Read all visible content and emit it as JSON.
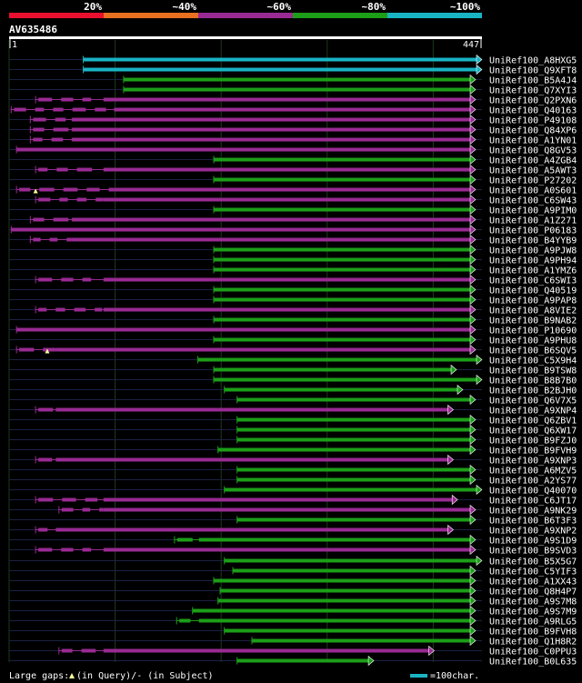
{
  "legend_scale": {
    "segments": [
      {
        "label": "20%",
        "color": "#e8102e"
      },
      {
        "label": "~40%",
        "color": "#e87020"
      },
      {
        "label": "~60%",
        "color": "#992a93"
      },
      {
        "label": "~80%",
        "color": "#1c9e18"
      },
      {
        "label": "~100%",
        "color": "#19b4c4"
      }
    ]
  },
  "query": {
    "name": "AV635486",
    "start": "1",
    "end": "447",
    "length": 447
  },
  "colors": {
    "cyan": "#19b4c4",
    "green": "#1c9e18",
    "magenta": "#992a93",
    "arrow_outline": "#ffffff",
    "gap_marker": "#ffff99"
  },
  "hits": [
    {
      "name": "UniRef100_A8HXG5",
      "color": "cyan",
      "start": 71,
      "end": 447,
      "tip": "arrow"
    },
    {
      "name": "UniRef100_Q9XFT8",
      "color": "cyan",
      "start": 71,
      "end": 447,
      "tip": "arrow"
    },
    {
      "name": "UniRef100_B5A4J4",
      "color": "green",
      "start": 109,
      "end": 441,
      "tip": "arrow"
    },
    {
      "name": "UniRef100_Q7XYI3",
      "color": "green",
      "start": 109,
      "end": 441,
      "tip": "arrow"
    },
    {
      "name": "UniRef100_Q2PXN6",
      "color": "magenta",
      "start": 26,
      "end": 441,
      "tip": "arrow",
      "dense_until": 90
    },
    {
      "name": "UniRef100_Q40163",
      "color": "magenta",
      "start": 3,
      "end": 441,
      "tip": "arrow",
      "dense_until": 100
    },
    {
      "name": "UniRef100_P49108",
      "color": "magenta",
      "start": 21,
      "end": 441,
      "tip": "arrow",
      "dense_until": 60
    },
    {
      "name": "UniRef100_Q84XP6",
      "color": "magenta",
      "start": 21,
      "end": 441,
      "tip": "arrow",
      "dense_until": 60
    },
    {
      "name": "UniRef100_A1YN01",
      "color": "magenta",
      "start": 21,
      "end": 441,
      "tip": "arrow",
      "dense_until": 60
    },
    {
      "name": "UniRef100_Q8GV53",
      "color": "magenta",
      "start": 8,
      "end": 441,
      "tip": "arrow"
    },
    {
      "name": "UniRef100_A4ZGB4",
      "color": "green",
      "start": 194,
      "end": 441,
      "tip": "arrow"
    },
    {
      "name": "UniRef100_A5AWT3",
      "color": "magenta",
      "start": 26,
      "end": 441,
      "tip": "arrow",
      "dense_until": 90
    },
    {
      "name": "UniRef100_P27202",
      "color": "green",
      "start": 194,
      "end": 441,
      "tip": "arrow"
    },
    {
      "name": "UniRef100_A0S601",
      "color": "magenta",
      "start": 8,
      "end": 441,
      "tip": "arrow",
      "dense_until": 100,
      "gap_marker": 26
    },
    {
      "name": "UniRef100_C6SW43",
      "color": "magenta",
      "start": 26,
      "end": 441,
      "tip": "arrow",
      "dense_until": 90
    },
    {
      "name": "UniRef100_A9PIM0",
      "color": "green",
      "start": 194,
      "end": 441,
      "tip": "arrow"
    },
    {
      "name": "UniRef100_A1Z271",
      "color": "magenta",
      "start": 21,
      "end": 441,
      "tip": "arrow",
      "dense_until": 60
    },
    {
      "name": "UniRef100_P06183",
      "color": "magenta",
      "start": 3,
      "end": 441,
      "tip": "arrow"
    },
    {
      "name": "UniRef100_B4YYB9",
      "color": "magenta",
      "start": 21,
      "end": 441,
      "tip": "arrow",
      "dense_until": 60
    },
    {
      "name": "UniRef100_A9PJW8",
      "color": "green",
      "start": 194,
      "end": 441,
      "tip": "arrow"
    },
    {
      "name": "UniRef100_A9PH94",
      "color": "green",
      "start": 194,
      "end": 441,
      "tip": "arrow"
    },
    {
      "name": "UniRef100_A1YMZ6",
      "color": "green",
      "start": 194,
      "end": 441,
      "tip": "arrow"
    },
    {
      "name": "UniRef100_C6SWI3",
      "color": "magenta",
      "start": 26,
      "end": 441,
      "tip": "arrow",
      "dense_until": 90
    },
    {
      "name": "UniRef100_Q40519",
      "color": "green",
      "start": 194,
      "end": 441,
      "tip": "arrow"
    },
    {
      "name": "UniRef100_A9PAP8",
      "color": "green",
      "start": 194,
      "end": 441,
      "tip": "arrow"
    },
    {
      "name": "UniRef100_A8VIE2",
      "color": "magenta",
      "start": 26,
      "end": 441,
      "tip": "arrow",
      "dense_until": 90
    },
    {
      "name": "UniRef100_B9NAB2",
      "color": "green",
      "start": 194,
      "end": 441,
      "tip": "arrow"
    },
    {
      "name": "UniRef100_P10690",
      "color": "magenta",
      "start": 8,
      "end": 441,
      "tip": "arrow"
    },
    {
      "name": "UniRef100_A9PHU8",
      "color": "green",
      "start": 194,
      "end": 441,
      "tip": "arrow"
    },
    {
      "name": "UniRef100_B6SQV5",
      "color": "magenta",
      "start": 8,
      "end": 441,
      "tip": "arrow",
      "dense_until": 45,
      "gap_marker": 37
    },
    {
      "name": "UniRef100_C5X9H4",
      "color": "green",
      "start": 179,
      "end": 447,
      "tip": "arrow"
    },
    {
      "name": "UniRef100_B9TSW8",
      "color": "green",
      "start": 194,
      "end": 423,
      "tip": "arrow"
    },
    {
      "name": "UniRef100_B8B7B0",
      "color": "green",
      "start": 194,
      "end": 447,
      "tip": "arrow"
    },
    {
      "name": "UniRef100_B2BJH0",
      "color": "green",
      "start": 204,
      "end": 429,
      "tip": "arrow"
    },
    {
      "name": "UniRef100_Q6V7X5",
      "color": "green",
      "start": 216,
      "end": 441,
      "tip": "arrow"
    },
    {
      "name": "UniRef100_A9XNP4",
      "color": "magenta",
      "start": 26,
      "end": 420,
      "tip": "arrow",
      "dense_until": 45
    },
    {
      "name": "UniRef100_Q6ZBV1",
      "color": "green",
      "start": 216,
      "end": 441,
      "tip": "arrow"
    },
    {
      "name": "UniRef100_Q6XW17",
      "color": "green",
      "start": 216,
      "end": 441,
      "tip": "arrow"
    },
    {
      "name": "UniRef100_B9FZJ0",
      "color": "green",
      "start": 216,
      "end": 441,
      "tip": "arrow"
    },
    {
      "name": "UniRef100_B9FVH9",
      "color": "green",
      "start": 198,
      "end": 441,
      "tip": "arrow"
    },
    {
      "name": "UniRef100_A9XNP3",
      "color": "magenta",
      "start": 26,
      "end": 420,
      "tip": "arrow",
      "dense_until": 45
    },
    {
      "name": "UniRef100_A6MZV5",
      "color": "green",
      "start": 216,
      "end": 441,
      "tip": "arrow"
    },
    {
      "name": "UniRef100_A2YS77",
      "color": "green",
      "start": 216,
      "end": 441,
      "tip": "arrow"
    },
    {
      "name": "UniRef100_Q40070",
      "color": "green",
      "start": 204,
      "end": 447,
      "tip": "arrow"
    },
    {
      "name": "UniRef100_C6JT17",
      "color": "magenta",
      "start": 26,
      "end": 424,
      "tip": "arrow",
      "dense_until": 90
    },
    {
      "name": "UniRef100_A9NK29",
      "color": "magenta",
      "start": 48,
      "end": 441,
      "tip": "arrow",
      "dense_until": 90
    },
    {
      "name": "UniRef100_B6T3F3",
      "color": "green",
      "start": 216,
      "end": 441,
      "tip": "arrow"
    },
    {
      "name": "UniRef100_A9XNP2",
      "color": "magenta",
      "start": 26,
      "end": 420,
      "tip": "arrow",
      "dense_until": 45
    },
    {
      "name": "UniRef100_A9S1D9",
      "color": "green",
      "start": 157,
      "end": 441,
      "tip": "arrow",
      "dense_until": 180
    },
    {
      "name": "UniRef100_B9SVD3",
      "color": "magenta",
      "start": 26,
      "end": 441,
      "tip": "arrow",
      "dense_until": 90
    },
    {
      "name": "UniRef100_B5X5G7",
      "color": "green",
      "start": 204,
      "end": 447,
      "tip": "arrow"
    },
    {
      "name": "UniRef100_C5YIF3",
      "color": "green",
      "start": 212,
      "end": 441,
      "tip": "arrow"
    },
    {
      "name": "UniRef100_A1XX43",
      "color": "green",
      "start": 194,
      "end": 441,
      "tip": "arrow"
    },
    {
      "name": "UniRef100_Q8H4P7",
      "color": "green",
      "start": 200,
      "end": 441,
      "tip": "arrow"
    },
    {
      "name": "UniRef100_A9S7M8",
      "color": "green",
      "start": 198,
      "end": 441,
      "tip": "arrow"
    },
    {
      "name": "UniRef100_A9S7M9",
      "color": "green",
      "start": 174,
      "end": 441,
      "tip": "arrow"
    },
    {
      "name": "UniRef100_A9RLG5",
      "color": "green",
      "start": 159,
      "end": 441,
      "tip": "arrow",
      "dense_until": 180
    },
    {
      "name": "UniRef100_B9FVH8",
      "color": "green",
      "start": 204,
      "end": 441,
      "tip": "arrow"
    },
    {
      "name": "UniRef100_Q1H8R2",
      "color": "green",
      "start": 230,
      "end": 441,
      "tip": "arrow"
    },
    {
      "name": "UniRef100_C0PPU3",
      "color": "magenta",
      "start": 48,
      "end": 402,
      "tip": "arrow",
      "dense_until": 90
    },
    {
      "name": "UniRef100_B0L635",
      "color": "green",
      "start": 216,
      "end": 345,
      "tip": "arrow"
    }
  ],
  "footer": {
    "large_gaps_prefix": "Large gaps:",
    "in_query_text": "(in Query)/",
    "dash_symbol": "-",
    "in_subject_text": " (in Subject)",
    "scale_text": "=100char."
  }
}
